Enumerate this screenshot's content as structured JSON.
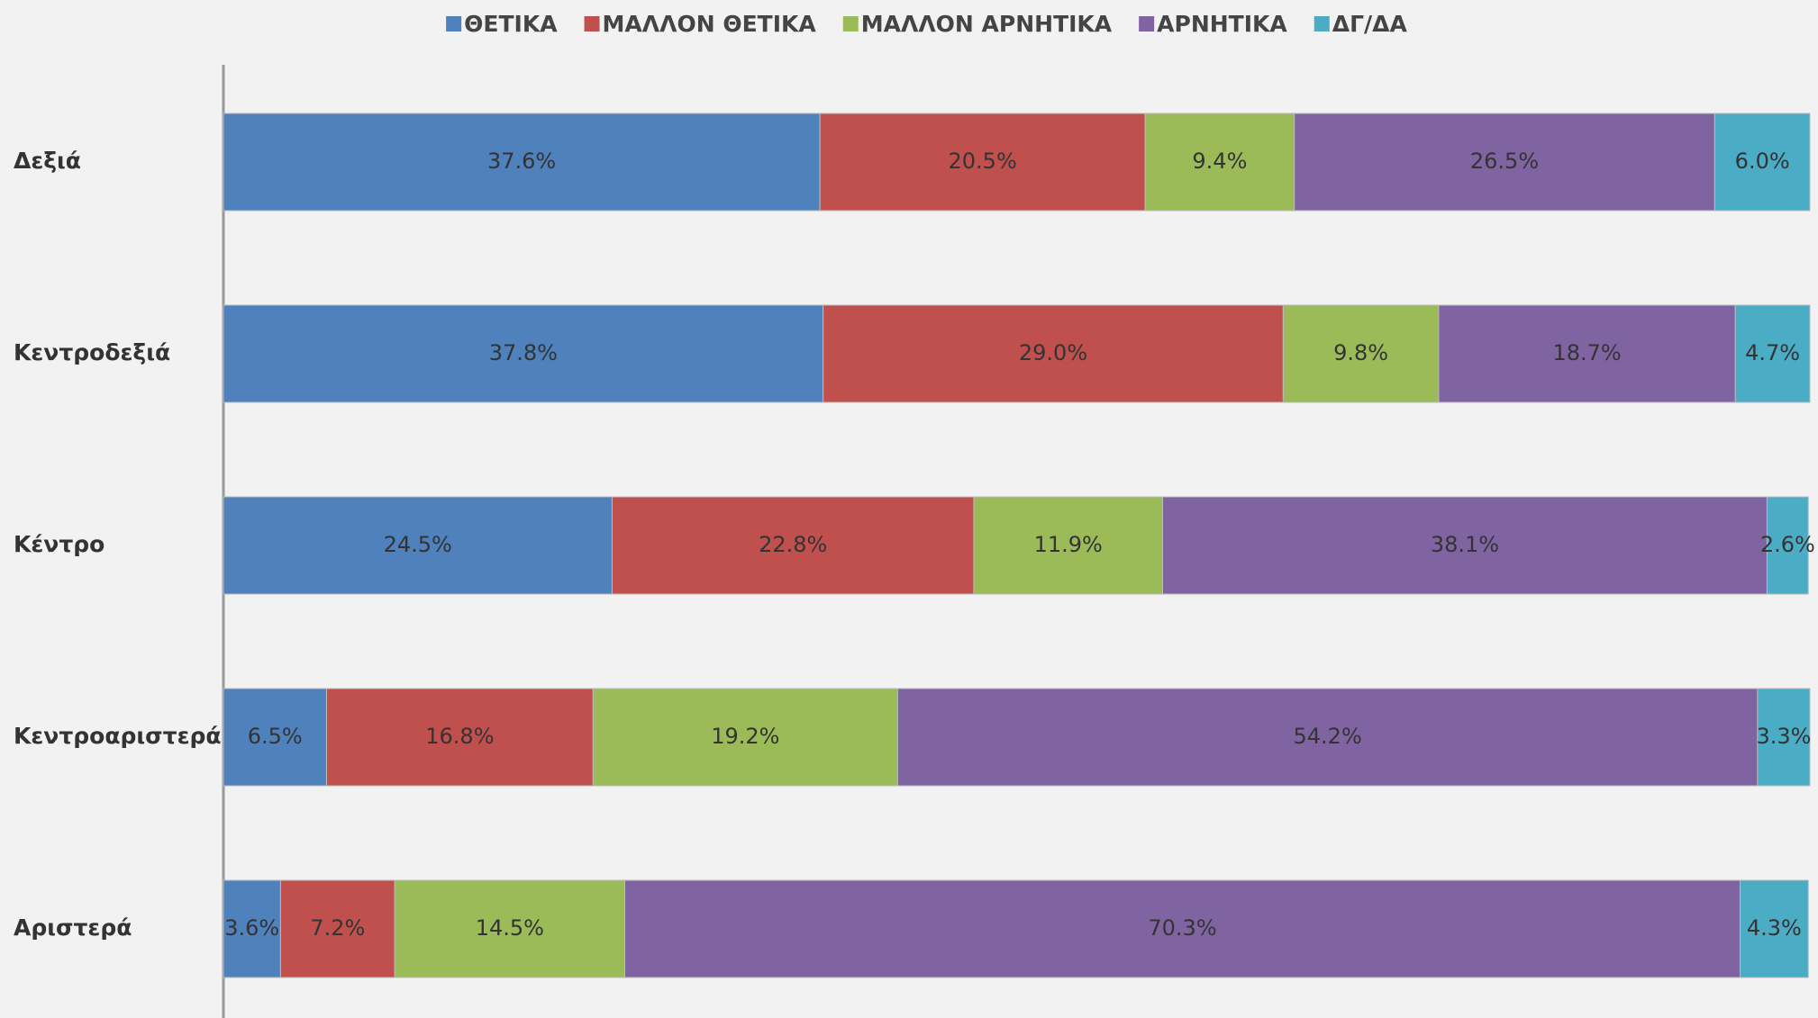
{
  "chart_data": {
    "type": "bar",
    "orientation": "horizontal",
    "stacked": true,
    "categories": [
      "Δεξιά",
      "Κεντροδεξιά",
      "Κέντρο",
      "Κεντροαριστερά",
      "Αριστερά"
    ],
    "xlim": [
      0,
      100
    ],
    "series": [
      {
        "name": "ΘΕΤΙΚΑ",
        "color": "#4f81bd",
        "values": [
          37.6,
          37.8,
          24.5,
          6.5,
          3.6
        ],
        "value_labels": [
          "37.6%",
          "37.8%",
          "24.5%",
          "6.5%",
          "3.6%"
        ]
      },
      {
        "name": "ΜΑΛΛΟΝ ΘΕΤΙΚΑ",
        "color": "#c0504d",
        "values": [
          20.5,
          29.0,
          22.8,
          16.8,
          7.2
        ],
        "value_labels": [
          "20.5%",
          "29.0%",
          "22.8%",
          "16.8%",
          "7.2%"
        ]
      },
      {
        "name": "ΜΑΛΛΟΝ ΑΡΝΗΤΙΚΑ",
        "color": "#9bbb59",
        "values": [
          9.4,
          9.8,
          11.9,
          19.2,
          14.5
        ],
        "value_labels": [
          "9.4%",
          "9.8%",
          "11.9%",
          "19.2%",
          "14.5%"
        ]
      },
      {
        "name": "ΑΡΝΗΤΙΚΑ",
        "color": "#8064a2",
        "values": [
          26.5,
          18.7,
          38.1,
          54.2,
          70.3
        ],
        "value_labels": [
          "26.5%",
          "18.7%",
          "38.1%",
          "54.2%",
          "70.3%"
        ]
      },
      {
        "name": "ΔΓ/ΔΑ",
        "color": "#4bacc6",
        "values": [
          6.0,
          4.7,
          2.6,
          3.3,
          4.3
        ],
        "value_labels": [
          "6.0%",
          "4.7%",
          "2.6%",
          "3.3%",
          "4.3%"
        ]
      }
    ],
    "legend": "top"
  }
}
